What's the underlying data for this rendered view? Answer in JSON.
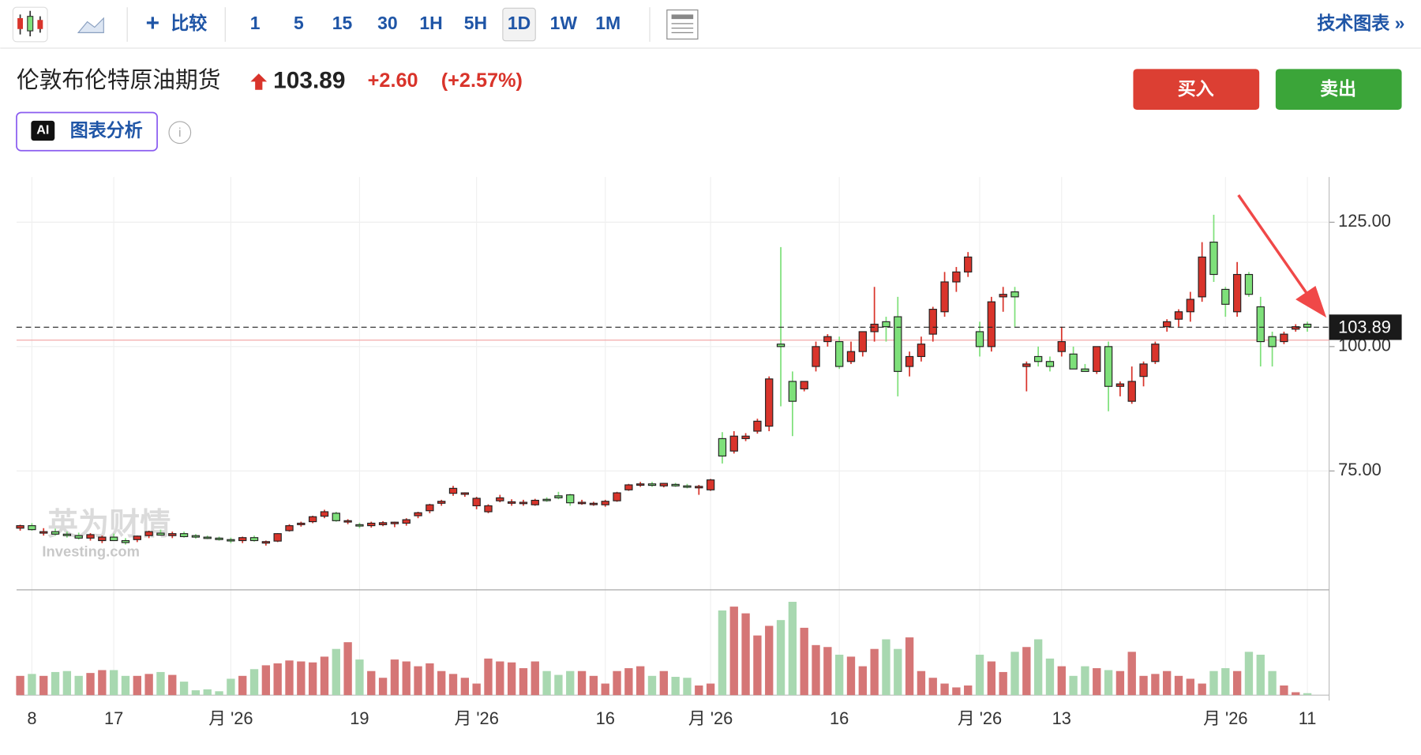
{
  "toolbar": {
    "compare": "比较",
    "intervals": [
      "1",
      "5",
      "15",
      "30",
      "1H",
      "5H",
      "1D",
      "1W",
      "1M"
    ],
    "active_interval": "1D",
    "technical": "技术图表 »"
  },
  "header": {
    "title": "伦敦布伦特原油期货",
    "price": "103.89",
    "change": "+2.60",
    "change_pct": "(+2.57%)",
    "buy": "买入",
    "sell": "卖出",
    "ai_badge": "AI",
    "ai_label": "图表分析"
  },
  "watermark": {
    "cn": "英为财情",
    "en": "Investing.com"
  },
  "chart_data": {
    "type": "candlestick",
    "up_color": "#d9342b",
    "down_color": "#7ee07a",
    "up_volume_color": "#d57676",
    "down_volume_color": "#a8d8b0",
    "categories": [
      null,
      "8",
      null,
      null,
      null,
      null,
      null,
      null,
      "17",
      null,
      null,
      null,
      null,
      null,
      null,
      null,
      null,
      null,
      "月 '26",
      null,
      null,
      null,
      null,
      null,
      null,
      null,
      null,
      null,
      null,
      "19",
      null,
      null,
      null,
      null,
      null,
      null,
      null,
      null,
      null,
      "月 '26",
      null,
      null,
      null,
      null,
      null,
      null,
      null,
      null,
      null,
      null,
      "16",
      null,
      null,
      null,
      null,
      null,
      null,
      null,
      null,
      "月 '26",
      null,
      null,
      null,
      null,
      null,
      null,
      null,
      null,
      null,
      null,
      "16",
      null,
      null,
      null,
      null,
      null,
      null,
      null,
      null,
      null,
      null,
      null,
      "月 '26",
      null,
      null,
      null,
      null,
      null,
      null,
      "13",
      null,
      null,
      null,
      null,
      null,
      null,
      null,
      null,
      null,
      null,
      null,
      null,
      null,
      "月 '26",
      null,
      null,
      null,
      null,
      null,
      null,
      "11"
    ],
    "open": [
      63.5,
      64,
      62.5,
      62.8,
      62.3,
      62,
      61.5,
      61,
      61.7,
      61,
      61.2,
      62,
      62.5,
      62,
      62.4,
      62,
      61.7,
      61.5,
      61.2,
      61,
      61.6,
      60.5,
      60.9,
      63,
      64.2,
      64.8,
      65.9,
      66.5,
      64.8,
      64.2,
      64,
      64.2,
      64.4,
      64.5,
      66,
      67,
      68.5,
      70.5,
      70.3,
      68,
      66.8,
      69,
      68.5,
      68.5,
      68.2,
      69.3,
      70,
      70.2,
      68.6,
      68.4,
      68.2,
      69,
      71.2,
      72.2,
      72.4,
      72,
      72.3,
      72,
      71.6,
      71.2,
      81.5,
      79,
      81.5,
      83,
      84,
      100.5,
      93,
      91.5,
      96,
      101,
      101,
      97,
      99,
      103,
      105,
      106,
      96,
      98,
      102.5,
      107,
      113,
      115,
      103,
      100,
      110,
      111,
      96,
      98,
      97,
      99,
      98.5,
      95.5,
      95,
      100,
      92,
      89,
      94,
      97,
      104,
      105.5,
      107,
      110,
      121,
      111.5,
      107,
      114.5,
      108,
      102,
      101,
      103.5,
      104.5
    ],
    "high": [
      64.2,
      64.5,
      63.5,
      63.4,
      62.8,
      62.6,
      62.5,
      62,
      62.4,
      61.5,
      62,
      63,
      63.2,
      62.8,
      62.8,
      62.3,
      62,
      61.8,
      61.6,
      61.8,
      62,
      61,
      62.5,
      64.3,
      64.8,
      66,
      67.2,
      66.8,
      65.3,
      64.6,
      64.8,
      64.9,
      64.8,
      65.5,
      66.8,
      68.4,
      69.2,
      72,
      70.7,
      69.8,
      68.3,
      70.2,
      69.3,
      69.2,
      69.4,
      69.7,
      70.8,
      70.4,
      69.2,
      68.8,
      69.2,
      70.8,
      72.4,
      72.8,
      72.8,
      72.6,
      72.6,
      72.4,
      72.2,
      73.4,
      82.8,
      83,
      82.6,
      85.5,
      94,
      120,
      95,
      93,
      101,
      102.5,
      102,
      101,
      103,
      112,
      106,
      110,
      99,
      102,
      108,
      115,
      116,
      119,
      105,
      110,
      112,
      112,
      97,
      100,
      98,
      104,
      100,
      96.5,
      100,
      101,
      93,
      96,
      97,
      101,
      105.5,
      107.5,
      111,
      121,
      126.5,
      112,
      117,
      115,
      110,
      103,
      103,
      104.5,
      105
    ],
    "low": [
      63,
      63,
      62,
      62,
      61.6,
      61.2,
      61,
      60.5,
      61,
      60.2,
      60.7,
      61.5,
      62,
      61.5,
      61.6,
      61.4,
      61.3,
      61,
      60.5,
      60.5,
      60.8,
      60,
      60.7,
      62.8,
      63.8,
      64.5,
      65.5,
      64.8,
      64.3,
      63.5,
      63.6,
      63.9,
      63.7,
      64,
      65.5,
      66.5,
      68,
      70,
      69.8,
      67.3,
      66.5,
      68.7,
      68,
      68,
      68,
      68.8,
      69.3,
      68,
      68.2,
      68,
      67.8,
      68.8,
      71,
      71.8,
      71.8,
      71.7,
      71.8,
      71.5,
      70.2,
      71,
      76.5,
      78.5,
      81,
      82.5,
      83,
      88,
      82,
      91,
      95,
      100,
      95.5,
      96.5,
      98,
      101,
      101,
      90,
      94,
      97,
      101,
      106,
      111,
      114,
      98,
      99,
      107,
      104,
      91,
      96,
      95,
      98,
      95.5,
      95,
      94.5,
      87,
      90,
      88.5,
      92,
      96.5,
      103,
      104,
      105,
      109,
      113,
      106,
      106,
      110,
      96,
      96,
      100.5,
      103,
      103
    ],
    "close": [
      64,
      63.2,
      62.8,
      62.3,
      62,
      61.5,
      62.2,
      61.7,
      61,
      60.6,
      61.9,
      62.8,
      62.1,
      62.4,
      61.8,
      61.7,
      61.6,
      61.2,
      61,
      61.6,
      61,
      60.8,
      62.4,
      64,
      64.5,
      65.8,
      66.8,
      65,
      65,
      64,
      64.5,
      64.6,
      64.7,
      65.2,
      66.6,
      68.2,
      68.9,
      71.5,
      70.6,
      69.5,
      68,
      69.6,
      68.8,
      68.7,
      69.1,
      69.1,
      69.6,
      68.6,
      68.7,
      68.5,
      68.9,
      70.6,
      72.2,
      72.4,
      72.1,
      72.5,
      72,
      71.8,
      71.9,
      73.2,
      78,
      82,
      82,
      85,
      93.5,
      100,
      89,
      93,
      100,
      102,
      96,
      99,
      103,
      104.5,
      104,
      95,
      98,
      100.5,
      107.5,
      113,
      115,
      118,
      100,
      109,
      110.5,
      110,
      96.5,
      97,
      96,
      101,
      95.5,
      95,
      100,
      92,
      92.5,
      93,
      96.5,
      100.5,
      105,
      107,
      109.5,
      118,
      114.5,
      108.5,
      114.5,
      110.5,
      101,
      100,
      102.5,
      104,
      103.89
    ],
    "volume": [
      20,
      22,
      20,
      24,
      25,
      20,
      23,
      26,
      26,
      20,
      20,
      22,
      24,
      21,
      14,
      5,
      6,
      4,
      17,
      20,
      27,
      31,
      33,
      36,
      35,
      34,
      40,
      48,
      55,
      37,
      25,
      18,
      37,
      35,
      30,
      33,
      25,
      22,
      18,
      12,
      38,
      35,
      34,
      28,
      35,
      25,
      21,
      25,
      25,
      20,
      12,
      25,
      28,
      30,
      20,
      25,
      19,
      18,
      10,
      12,
      88,
      92,
      85,
      62,
      72,
      78,
      97,
      70,
      52,
      50,
      42,
      40,
      30,
      48,
      58,
      48,
      60,
      25,
      18,
      12,
      8,
      10,
      42,
      35,
      24,
      45,
      50,
      58,
      38,
      30,
      20,
      30,
      28,
      26,
      25,
      45,
      20,
      22,
      25,
      20,
      17,
      12,
      25,
      28,
      25,
      45,
      42,
      25,
      10,
      3,
      2
    ],
    "prev_close": 101.29,
    "ylim": [
      51.1,
      134.1
    ],
    "yticks": [
      {
        "value": 75,
        "label": "75.00"
      },
      {
        "value": 100,
        "label": "100.00"
      },
      {
        "value": 125,
        "label": "125.00"
      }
    ],
    "vlim": [
      0,
      100
    ],
    "grid": true
  }
}
